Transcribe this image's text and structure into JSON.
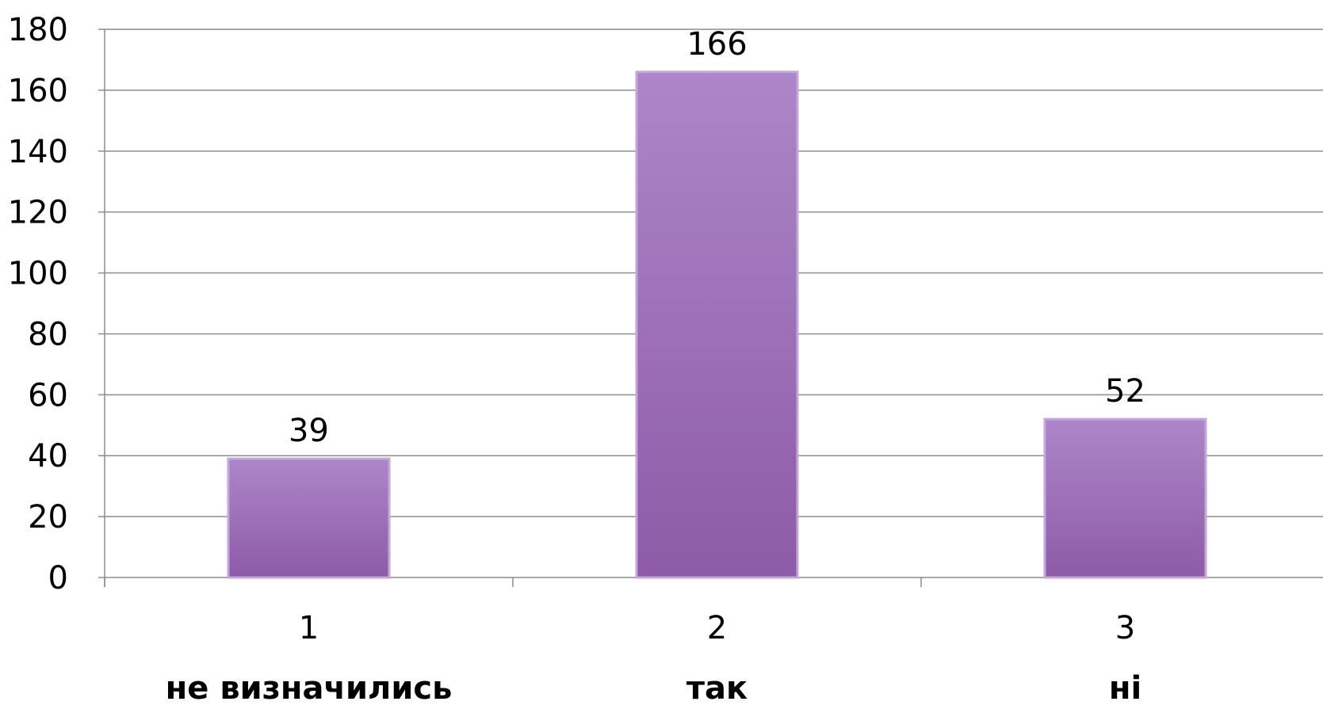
{
  "chart_data": {
    "type": "bar",
    "categories": [
      "1",
      "2",
      "3"
    ],
    "category_names": [
      "не визначились",
      "так",
      "ні"
    ],
    "values": [
      39,
      166,
      52
    ],
    "data_labels": [
      "39",
      "166",
      "52"
    ],
    "title": "",
    "xlabel": "",
    "ylabel": "",
    "ylim": [
      0,
      180
    ],
    "yticks": [
      0,
      20,
      40,
      60,
      80,
      100,
      120,
      140,
      160,
      180
    ],
    "grid": true,
    "legend": "none",
    "bar_color_top": "#ad86c8",
    "bar_color_bottom": "#8d5ba7",
    "bar_edge_color": "#c4a6da",
    "grid_color": "#8c8c8c"
  }
}
